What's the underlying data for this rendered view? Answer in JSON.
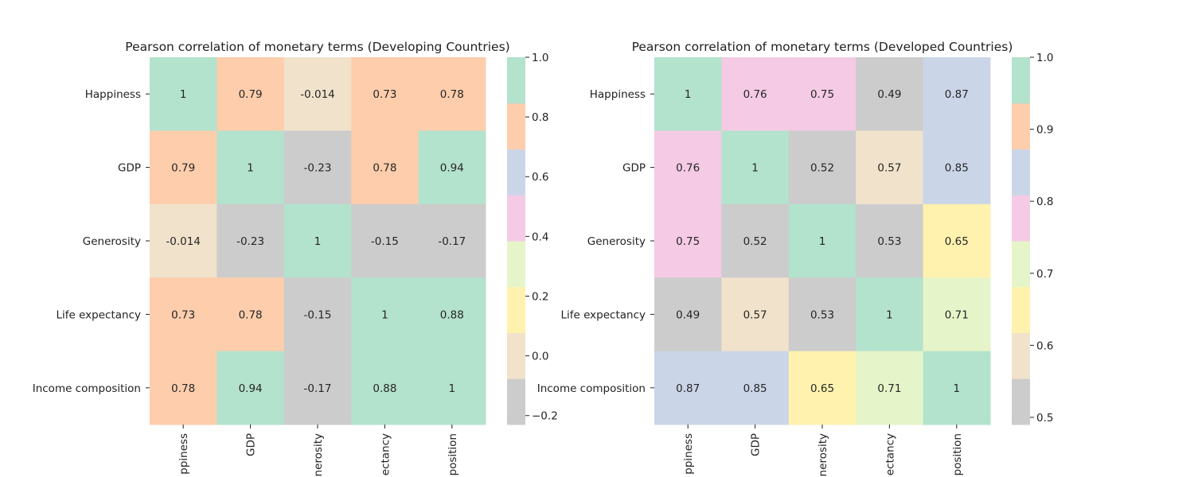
{
  "chart_data": [
    {
      "type": "heatmap",
      "title": "Pearson correlation of monetary terms (Developing Countries)",
      "row_labels": [
        "Happiness",
        "GDP",
        "Generosity",
        "Life expectancy",
        "Income composition"
      ],
      "col_labels": [
        "ppiness",
        "GDP",
        "nerosity",
        "ectancy",
        "position"
      ],
      "values": [
        [
          1,
          0.79,
          -0.014,
          0.73,
          0.78
        ],
        [
          0.79,
          1,
          -0.23,
          0.78,
          0.94
        ],
        [
          -0.014,
          -0.23,
          1,
          -0.15,
          -0.17
        ],
        [
          0.73,
          0.78,
          -0.15,
          1,
          0.88
        ],
        [
          0.78,
          0.94,
          -0.17,
          0.88,
          1
        ]
      ],
      "vmin": -0.23,
      "vmax": 1.0,
      "colorbar_ticks": [
        -0.2,
        0.0,
        0.2,
        0.4,
        0.6,
        0.8,
        1.0
      ],
      "colorbar_tick_labels": [
        "−0.2",
        "0.0",
        "0.2",
        "0.4",
        "0.6",
        "0.8",
        "1.0"
      ],
      "palette": [
        "#cccccc",
        "#f1e2cc",
        "#fff2ae",
        "#e6f5c9",
        "#f4cae4",
        "#cbd5e8",
        "#fdcdac",
        "#b3e2cd"
      ]
    },
    {
      "type": "heatmap",
      "title": "Pearson correlation of monetary terms (Developed Countries)",
      "row_labels": [
        "Happiness",
        "GDP",
        "Generosity",
        "Life expectancy",
        "Income composition"
      ],
      "col_labels": [
        "ppiness",
        "GDP",
        "nerosity",
        "ectancy",
        "position"
      ],
      "values": [
        [
          1,
          0.76,
          0.75,
          0.49,
          0.87
        ],
        [
          0.76,
          1,
          0.52,
          0.57,
          0.85
        ],
        [
          0.75,
          0.52,
          1,
          0.53,
          0.65
        ],
        [
          0.49,
          0.57,
          0.53,
          1,
          0.71
        ],
        [
          0.87,
          0.85,
          0.65,
          0.71,
          1
        ]
      ],
      "vmin": 0.49,
      "vmax": 1.0,
      "colorbar_ticks": [
        0.5,
        0.6,
        0.7,
        0.8,
        0.9,
        1.0
      ],
      "colorbar_tick_labels": [
        "0.5",
        "0.6",
        "0.7",
        "0.8",
        "0.9",
        "1.0"
      ],
      "palette": [
        "#cccccc",
        "#f1e2cc",
        "#fff2ae",
        "#e6f5c9",
        "#f4cae4",
        "#cbd5e8",
        "#fdcdac",
        "#b3e2cd"
      ]
    }
  ]
}
